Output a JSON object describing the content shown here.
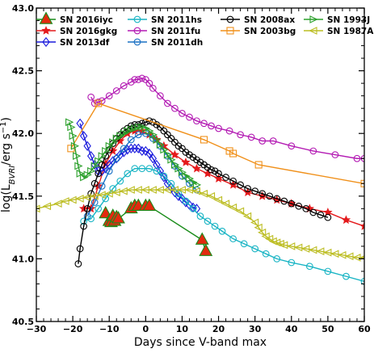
{
  "chart_data": {
    "type": "line",
    "xlabel": "Days since V-band max",
    "ylabel": "log(L_BVRI/erg s^-1)",
    "ylabel_parts": {
      "prefix": "log(L",
      "sub": "BVRI",
      "mid": "/erg s",
      "sup": "−1",
      "suffix": ")"
    },
    "xlim": [
      -30,
      60
    ],
    "ylim": [
      40.5,
      43.0
    ],
    "xticks": [
      -30,
      -20,
      -10,
      0,
      10,
      20,
      30,
      40,
      50,
      60
    ],
    "yticks": [
      40.5,
      41.0,
      41.5,
      42.0,
      42.5,
      43.0
    ],
    "xtick_labels": [
      "−30",
      "−20",
      "−10",
      "0",
      "10",
      "20",
      "30",
      "40",
      "50",
      "60"
    ],
    "ytick_labels": [
      "40.5",
      "41.0",
      "41.5",
      "42.0",
      "42.5",
      "43.0"
    ],
    "legend_location": "top",
    "grid": false,
    "series": [
      {
        "name": "SN 2016iyc",
        "color": "#1a8c1a",
        "fill": "#e32a10",
        "marker": "triangle-up-big",
        "x": [
          -11,
          -10,
          -9.5,
          -9,
          -8.5,
          -8,
          -7.5,
          -4,
          -3,
          -2,
          0,
          1,
          15.5,
          16.5
        ],
        "y": [
          41.36,
          41.3,
          41.29,
          41.34,
          41.3,
          41.33,
          41.32,
          41.4,
          41.42,
          41.42,
          41.42,
          41.42,
          41.15,
          41.06
        ]
      },
      {
        "name": "SN 2016gkg",
        "color": "#e41a1c",
        "marker": "star",
        "x": [
          -17,
          -15,
          -13,
          -11,
          -9,
          -7,
          -5,
          -3,
          -1,
          1,
          3,
          5,
          8,
          11,
          14,
          17,
          20,
          24,
          28,
          32,
          36,
          40,
          45,
          50,
          55,
          60
        ],
        "y": [
          41.4,
          41.4,
          41.58,
          41.76,
          41.86,
          41.94,
          42.0,
          42.02,
          42.02,
          41.99,
          41.95,
          41.9,
          41.83,
          41.77,
          41.72,
          41.68,
          41.64,
          41.59,
          41.53,
          41.5,
          41.47,
          41.44,
          41.4,
          41.37,
          41.31,
          41.26
        ]
      },
      {
        "name": "SN 2013df",
        "color": "#1a1adc",
        "marker": "diamond",
        "x": [
          -18,
          -17,
          -16,
          -15,
          -14,
          -13,
          -12,
          -11,
          -10,
          -9,
          -8,
          -7,
          -6,
          -5,
          -4,
          -3,
          -2,
          -1,
          0,
          1,
          2,
          3,
          4,
          5,
          6,
          7,
          8,
          9,
          10,
          11,
          12,
          13,
          14
        ],
        "y": [
          42.08,
          41.98,
          41.9,
          41.82,
          41.75,
          41.7,
          41.7,
          41.72,
          41.75,
          41.78,
          41.8,
          41.83,
          41.85,
          41.87,
          41.88,
          41.88,
          41.88,
          41.86,
          41.86,
          41.84,
          41.8,
          41.75,
          41.7,
          41.65,
          41.6,
          41.57,
          41.53,
          41.5,
          41.48,
          41.45,
          41.43,
          41.41,
          41.4
        ]
      },
      {
        "name": "SN 2011hs",
        "color": "#18b4c4",
        "marker": "circle",
        "x": [
          -17,
          -15,
          -13,
          -11,
          -9,
          -7,
          -5,
          -3,
          -1,
          1,
          3,
          5,
          7,
          9,
          11,
          13,
          15,
          17,
          19,
          21,
          24,
          27,
          30,
          33,
          36,
          40,
          45,
          50,
          55,
          60
        ],
        "y": [
          41.3,
          41.32,
          41.4,
          41.48,
          41.56,
          41.62,
          41.68,
          41.72,
          41.72,
          41.72,
          41.7,
          41.66,
          41.6,
          41.52,
          41.46,
          41.4,
          41.34,
          41.3,
          41.26,
          41.22,
          41.16,
          41.12,
          41.08,
          41.04,
          41.0,
          40.97,
          40.94,
          40.9,
          40.86,
          40.82
        ]
      },
      {
        "name": "SN 2011fu",
        "color": "#b31ab3",
        "marker": "circle",
        "x": [
          -15,
          -14,
          -13,
          -12,
          -10,
          -8,
          -6,
          -4,
          -3,
          -2,
          -1,
          0,
          1,
          2,
          4,
          6,
          8,
          10,
          12,
          14,
          16,
          18,
          20,
          23,
          26,
          29,
          32,
          35,
          40,
          46,
          52,
          58,
          60
        ],
        "y": [
          42.29,
          42.24,
          42.25,
          42.26,
          42.3,
          42.34,
          42.38,
          42.41,
          42.43,
          42.43,
          42.44,
          42.43,
          42.4,
          42.36,
          42.3,
          42.24,
          42.2,
          42.16,
          42.13,
          42.1,
          42.08,
          42.06,
          42.04,
          42.02,
          41.99,
          41.97,
          41.94,
          41.94,
          41.9,
          41.86,
          41.83,
          41.8,
          41.8
        ]
      },
      {
        "name": "SN 2011dh",
        "color": "#1a70c4",
        "marker": "circle",
        "x": [
          -16,
          -14,
          -12,
          -10,
          -8,
          -6,
          -4,
          -2,
          0,
          2,
          4,
          6,
          8,
          10,
          12,
          14
        ],
        "y": [
          41.34,
          41.45,
          41.58,
          41.7,
          41.8,
          41.88,
          41.95,
          41.99,
          42.0,
          41.96,
          41.9,
          41.82,
          41.74,
          41.66,
          41.6,
          41.55
        ]
      },
      {
        "name": "SN 2008ax",
        "color": "#000000",
        "marker": "circle",
        "x": [
          -18.5,
          -18,
          -17,
          -16,
          -15,
          -14,
          -13,
          -12,
          -11,
          -10,
          -9,
          -8,
          -7,
          -6,
          -5,
          -4,
          -3,
          -2,
          -1,
          0,
          1,
          2,
          3,
          4,
          5,
          6,
          7,
          8,
          9,
          10,
          11,
          12,
          13,
          14,
          15,
          16,
          17,
          18,
          19,
          20,
          22,
          24,
          26,
          28,
          30,
          32,
          34,
          36,
          38,
          40,
          42,
          44,
          46,
          48,
          50
        ],
        "y": [
          40.96,
          41.08,
          41.26,
          41.4,
          41.52,
          41.6,
          41.68,
          41.75,
          41.82,
          41.87,
          41.92,
          41.96,
          41.99,
          42.02,
          42.04,
          42.06,
          42.07,
          42.07,
          42.08,
          42.09,
          42.1,
          42.09,
          42.07,
          42.05,
          42.02,
          41.99,
          41.96,
          41.93,
          41.9,
          41.88,
          41.85,
          41.83,
          41.81,
          41.79,
          41.77,
          41.75,
          41.73,
          41.71,
          41.7,
          41.68,
          41.65,
          41.62,
          41.59,
          41.56,
          41.54,
          41.52,
          41.5,
          41.48,
          41.46,
          41.44,
          41.42,
          41.4,
          41.37,
          41.35,
          41.33
        ]
      },
      {
        "name": "SN 2003bg",
        "color": "#f0901a",
        "marker": "square",
        "x": [
          -20.5,
          -13,
          16,
          23,
          24,
          31,
          60
        ],
        "y": [
          41.88,
          42.24,
          41.95,
          41.86,
          41.84,
          41.75,
          41.6
        ]
      },
      {
        "name": "SN 1993J",
        "color": "#2ca02c",
        "marker": "triangle-right",
        "x": [
          -21,
          -20.5,
          -20,
          -19.5,
          -19,
          -18.5,
          -18,
          -17,
          -16,
          -15,
          -14,
          -13,
          -12,
          -11,
          -10,
          -9,
          -8,
          -7,
          -6,
          -5,
          -4,
          -3,
          -2,
          -1,
          0,
          1,
          2,
          3,
          4,
          5,
          6,
          7,
          8,
          9,
          10,
          11,
          12,
          13,
          14
        ],
        "y": [
          42.09,
          42.05,
          41.98,
          41.9,
          41.82,
          41.74,
          41.68,
          41.65,
          41.67,
          41.7,
          41.74,
          41.78,
          41.82,
          41.86,
          41.9,
          41.93,
          41.96,
          41.98,
          42.0,
          42.02,
          42.03,
          42.04,
          42.05,
          42.05,
          42.04,
          42.02,
          41.99,
          41.95,
          41.91,
          41.87,
          41.83,
          41.79,
          41.75,
          41.72,
          41.69,
          41.66,
          41.64,
          41.61,
          41.59
        ]
      },
      {
        "name": "SN 1987A",
        "color": "#bcbd22",
        "marker": "triangle-left",
        "x": [
          -30,
          -27,
          -24,
          -22,
          -20,
          -18,
          -16,
          -14,
          -12,
          -10,
          -8,
          -6,
          -4,
          -2,
          0,
          2,
          4,
          6,
          8,
          10,
          12,
          14,
          16,
          18,
          20,
          22,
          24,
          26,
          28,
          30,
          31,
          32,
          33,
          34,
          35,
          36,
          37,
          38,
          40,
          42,
          44,
          46,
          48,
          50,
          52,
          54,
          56,
          58,
          60
        ],
        "y": [
          41.4,
          41.42,
          41.44,
          41.46,
          41.47,
          41.48,
          41.49,
          41.5,
          41.51,
          41.52,
          41.53,
          41.54,
          41.55,
          41.55,
          41.55,
          41.55,
          41.55,
          41.55,
          41.55,
          41.55,
          41.55,
          41.54,
          41.52,
          41.5,
          41.47,
          41.44,
          41.41,
          41.38,
          41.34,
          41.29,
          41.25,
          41.21,
          41.18,
          41.16,
          41.14,
          41.13,
          41.12,
          41.11,
          41.1,
          41.09,
          41.08,
          41.07,
          41.06,
          41.05,
          41.04,
          41.03,
          41.02,
          41.01,
          41.01
        ]
      }
    ]
  }
}
